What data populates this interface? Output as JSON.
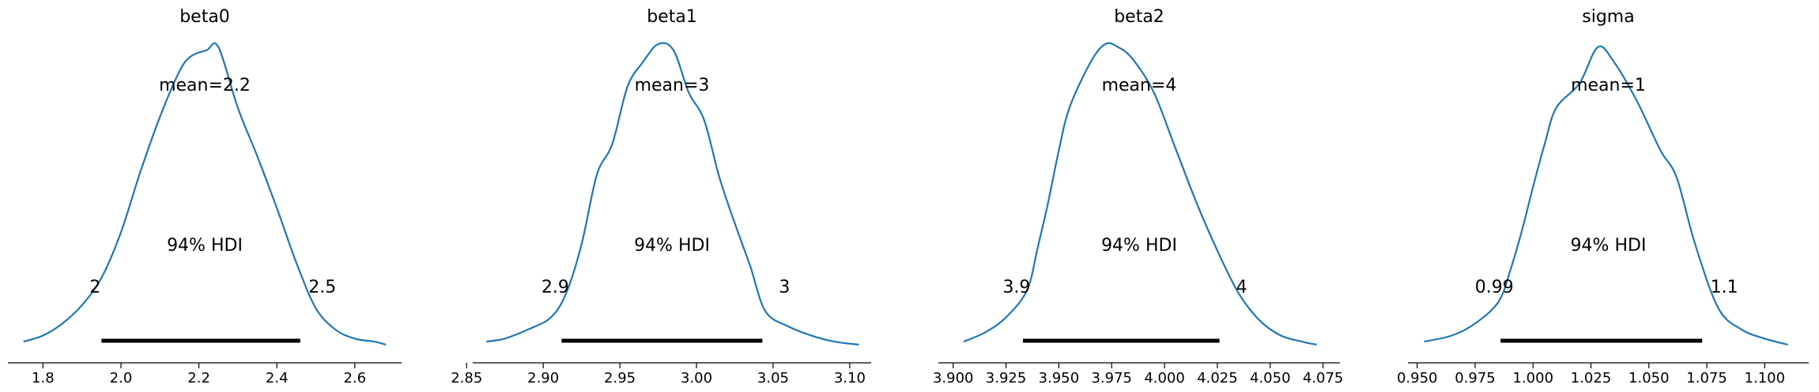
{
  "colors": {
    "line": "#1f77b4",
    "hdi": "#000000",
    "axis": "#000000"
  },
  "chart_data": [
    {
      "type": "line",
      "title": "beta0",
      "point_estimate_label": "mean=2.2",
      "hdi_label": "94% HDI",
      "hdi": [
        1.95,
        2.46
      ],
      "hdi_low_label": "2",
      "hdi_high_label": "2.5",
      "xlim": [
        1.71,
        2.72
      ],
      "ticks": [
        1.8,
        2.0,
        2.2,
        2.4,
        2.6
      ],
      "tick_labels": [
        "1.8",
        "2.0",
        "2.2",
        "2.4",
        "2.6"
      ],
      "x": [
        1.75,
        1.8,
        1.85,
        1.9,
        1.95,
        2.0,
        2.05,
        2.1,
        2.15,
        2.18,
        2.22,
        2.25,
        2.3,
        2.35,
        2.4,
        2.45,
        2.5,
        2.55,
        2.6,
        2.65,
        2.68
      ],
      "y": [
        0.01,
        0.03,
        0.07,
        0.13,
        0.22,
        0.37,
        0.57,
        0.75,
        0.9,
        0.95,
        0.97,
        0.98,
        0.78,
        0.62,
        0.45,
        0.27,
        0.12,
        0.05,
        0.02,
        0.01,
        0.0
      ]
    },
    {
      "type": "line",
      "title": "beta1",
      "point_estimate_label": "mean=3",
      "hdi_label": "94% HDI",
      "hdi": [
        2.912,
        3.043
      ],
      "hdi_low_label": "2.9",
      "hdi_high_label": "3",
      "xlim": [
        2.854,
        3.114
      ],
      "ticks": [
        2.85,
        2.9,
        2.95,
        3.0,
        3.05,
        3.1
      ],
      "tick_labels": [
        "2.85",
        "2.90",
        "2.95",
        "3.00",
        "3.05",
        "3.10"
      ],
      "x": [
        2.863,
        2.875,
        2.89,
        2.905,
        2.915,
        2.925,
        2.935,
        2.945,
        2.955,
        2.965,
        2.975,
        2.985,
        2.995,
        3.005,
        3.015,
        3.025,
        3.035,
        3.045,
        3.06,
        3.075,
        3.09,
        3.106
      ],
      "y": [
        0.01,
        0.02,
        0.05,
        0.09,
        0.17,
        0.33,
        0.56,
        0.66,
        0.85,
        0.93,
        0.99,
        0.97,
        0.83,
        0.74,
        0.55,
        0.4,
        0.26,
        0.11,
        0.06,
        0.03,
        0.01,
        0.0
      ]
    },
    {
      "type": "line",
      "title": "beta2",
      "point_estimate_label": "mean=4",
      "hdi_label": "94% HDI",
      "hdi": [
        3.933,
        4.026
      ],
      "hdi_low_label": "3.9",
      "hdi_high_label": "4",
      "xlim": [
        3.893,
        4.083
      ],
      "ticks": [
        3.9,
        3.925,
        3.95,
        3.975,
        4.0,
        4.025,
        4.05,
        4.075
      ],
      "tick_labels": [
        "3.900",
        "3.925",
        "3.950",
        "3.975",
        "4.000",
        "4.025",
        "4.050",
        "4.075"
      ],
      "x": [
        3.905,
        3.915,
        3.925,
        3.935,
        3.94,
        3.945,
        3.95,
        3.955,
        3.965,
        3.972,
        3.978,
        3.985,
        3.995,
        4.005,
        4.015,
        4.025,
        4.035,
        4.045,
        4.055,
        4.065,
        4.072
      ],
      "y": [
        0.01,
        0.04,
        0.09,
        0.18,
        0.32,
        0.47,
        0.64,
        0.78,
        0.93,
        0.99,
        0.98,
        0.94,
        0.83,
        0.65,
        0.47,
        0.31,
        0.17,
        0.08,
        0.03,
        0.01,
        0.0
      ]
    },
    {
      "type": "line",
      "title": "sigma",
      "point_estimate_label": "mean=1",
      "hdi_label": "94% HDI",
      "hdi": [
        0.986,
        1.073
      ],
      "hdi_low_label": "0.99",
      "hdi_high_label": "1.1",
      "xlim": [
        0.946,
        1.119
      ],
      "ticks": [
        0.95,
        0.975,
        1.0,
        1.025,
        1.05,
        1.075,
        1.1
      ],
      "tick_labels": [
        "0.950",
        "0.975",
        "1.000",
        "1.025",
        "1.050",
        "1.075",
        "1.100"
      ],
      "x": [
        0.953,
        0.965,
        0.975,
        0.985,
        0.99,
        0.995,
        1.0,
        1.005,
        1.01,
        1.02,
        1.028,
        1.035,
        1.045,
        1.055,
        1.062,
        1.07,
        1.08,
        1.09,
        1.1,
        1.11
      ],
      "y": [
        0.01,
        0.03,
        0.07,
        0.14,
        0.24,
        0.37,
        0.52,
        0.66,
        0.78,
        0.86,
        0.98,
        0.93,
        0.8,
        0.64,
        0.55,
        0.33,
        0.12,
        0.05,
        0.02,
        0.0
      ]
    }
  ]
}
